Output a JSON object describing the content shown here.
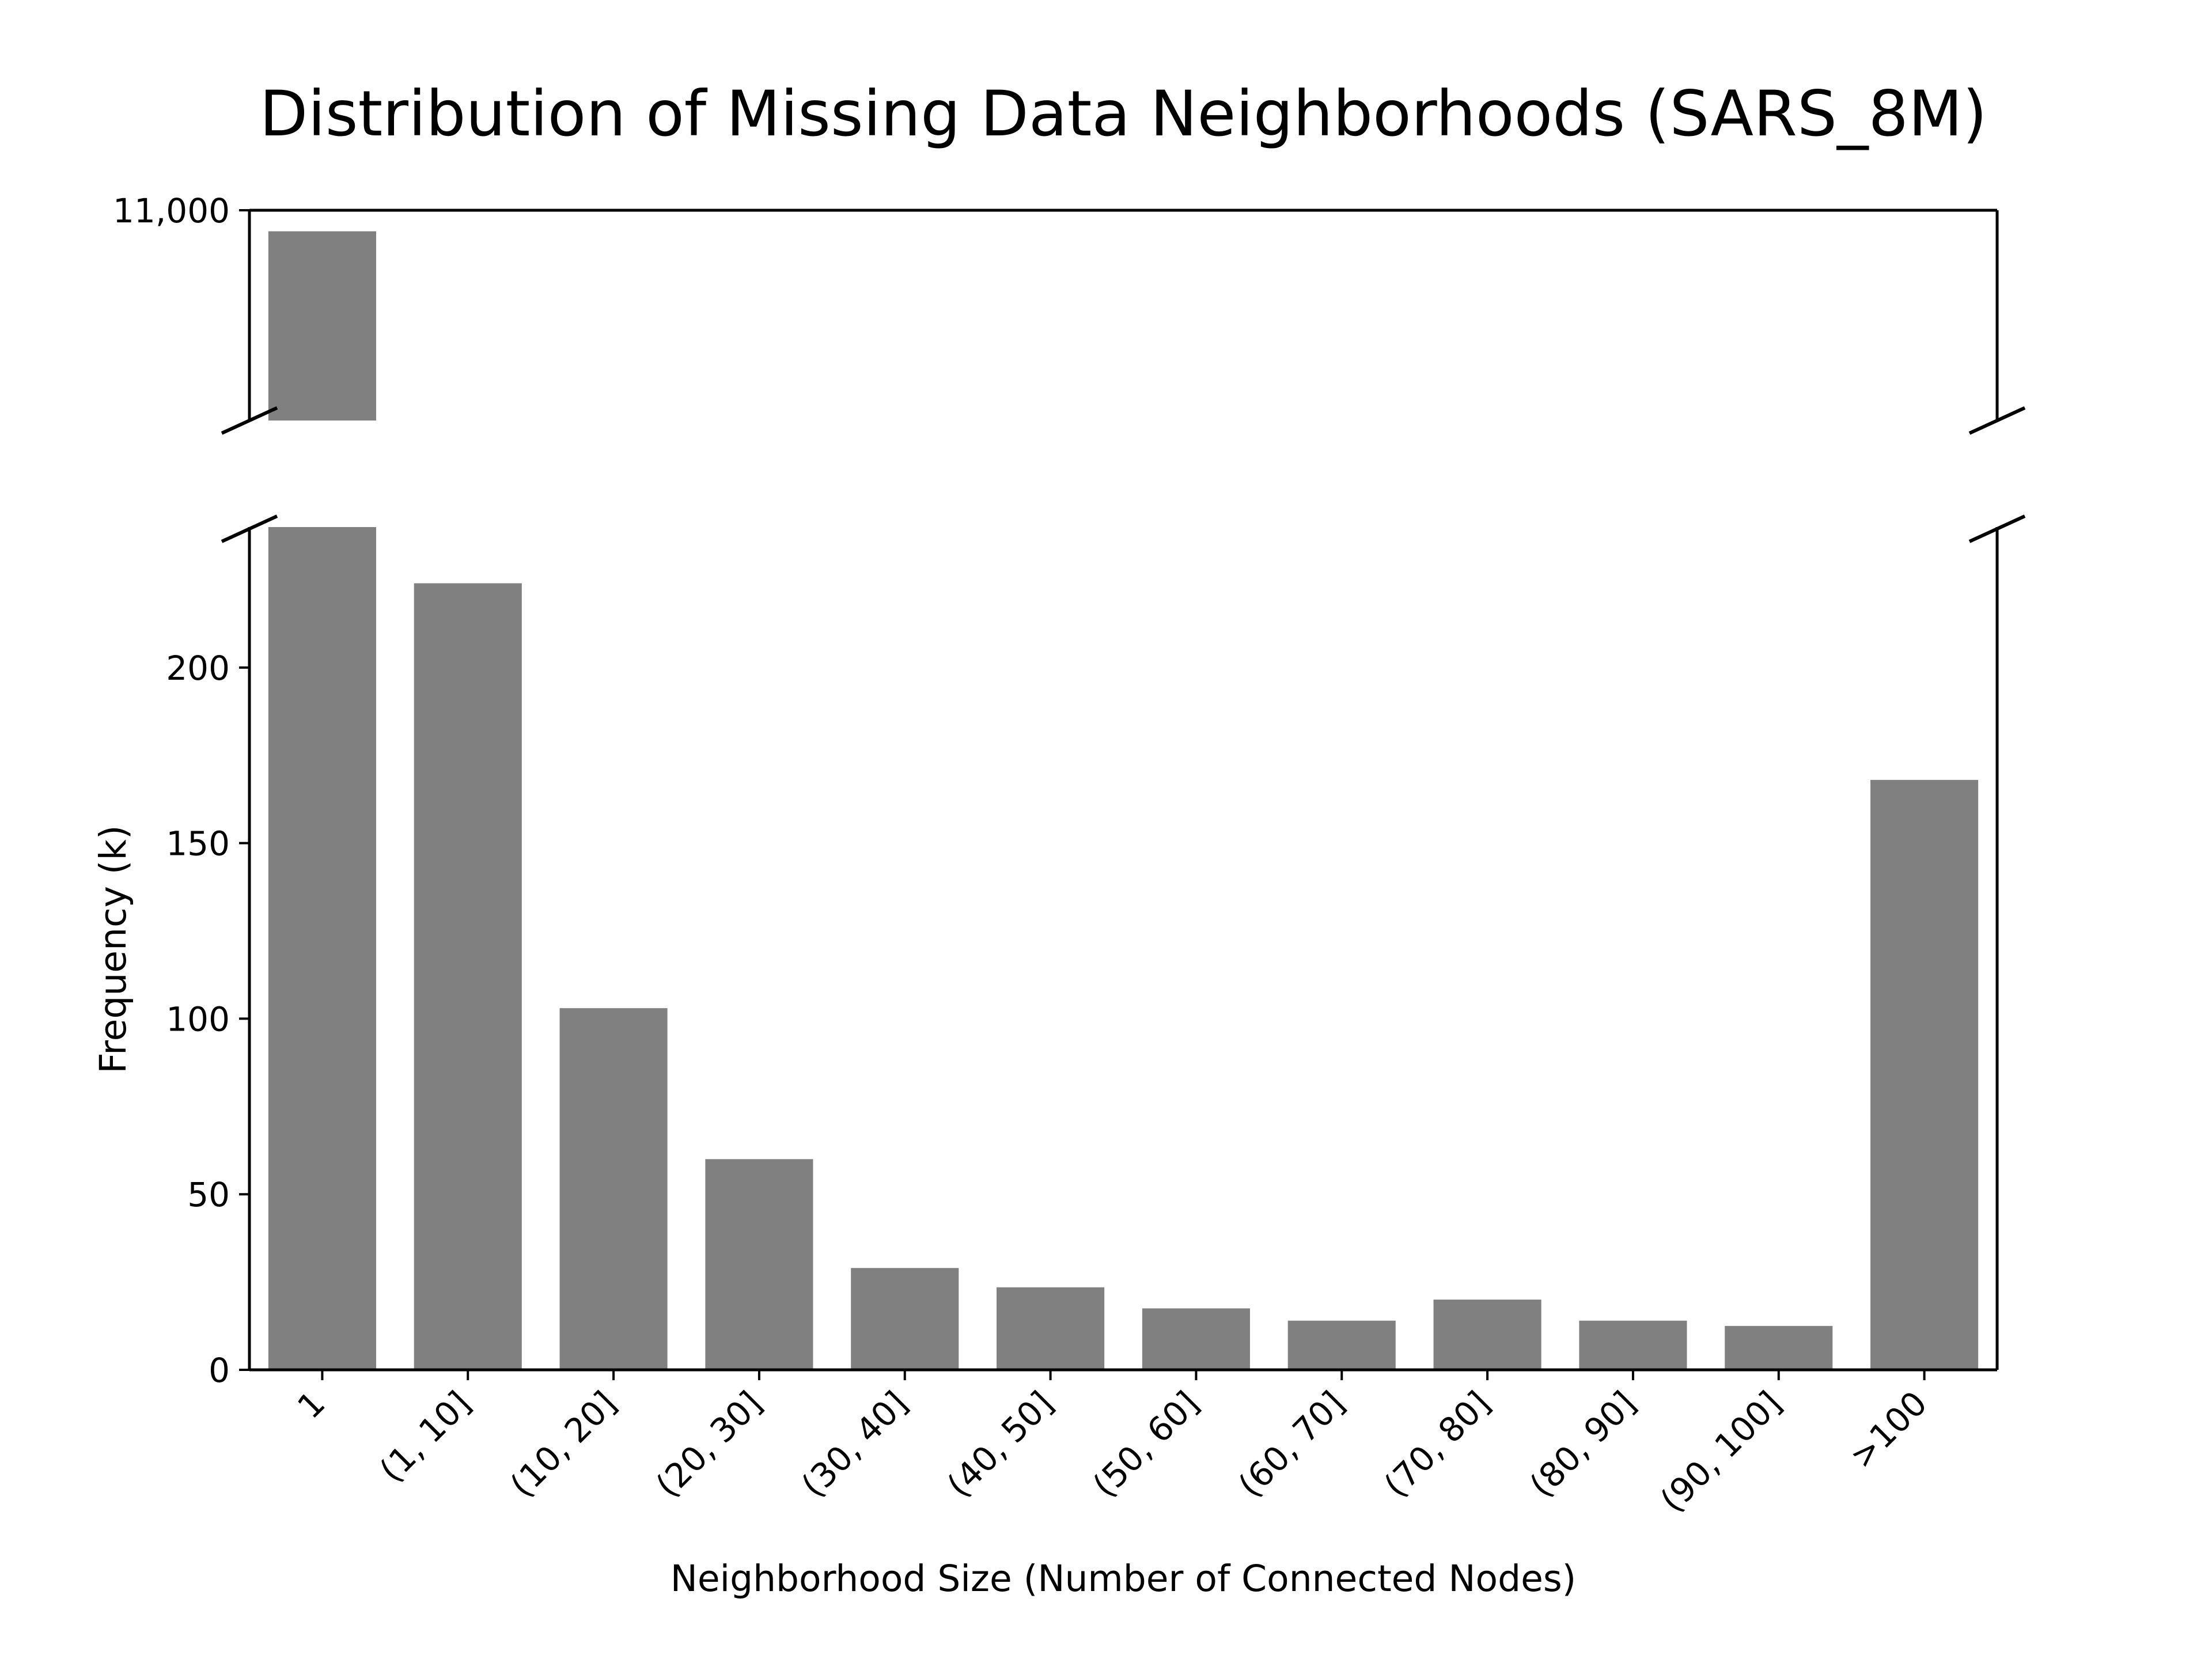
{
  "chart_data": {
    "type": "bar",
    "title": "Distribution of Missing Data Neighborhoods (SARS_8M)",
    "xlabel": "Neighborhood Size (Number of Connected Nodes)",
    "ylabel": "Frequency (k)",
    "categories": [
      "1",
      "(1, 10]",
      "(10, 20]",
      "(20, 30]",
      "(30, 40]",
      "(40, 50]",
      "(50, 60]",
      "(60, 70]",
      "(70, 80]",
      "(80, 90]",
      "(90, 100]",
      ">100"
    ],
    "values": [
      10950,
      224,
      103,
      60,
      29,
      23.5,
      17.5,
      14,
      20,
      14,
      12.5,
      168
    ],
    "broken_y_axis": true,
    "ylim_lower": [
      0,
      240
    ],
    "ylim_upper": [
      10500,
      11000
    ],
    "yticks_lower": [
      "0",
      "50",
      "100",
      "150",
      "200"
    ],
    "yticks_upper": [
      "11,000"
    ],
    "bar_color": "#808080",
    "grid": false,
    "legend": "none"
  }
}
